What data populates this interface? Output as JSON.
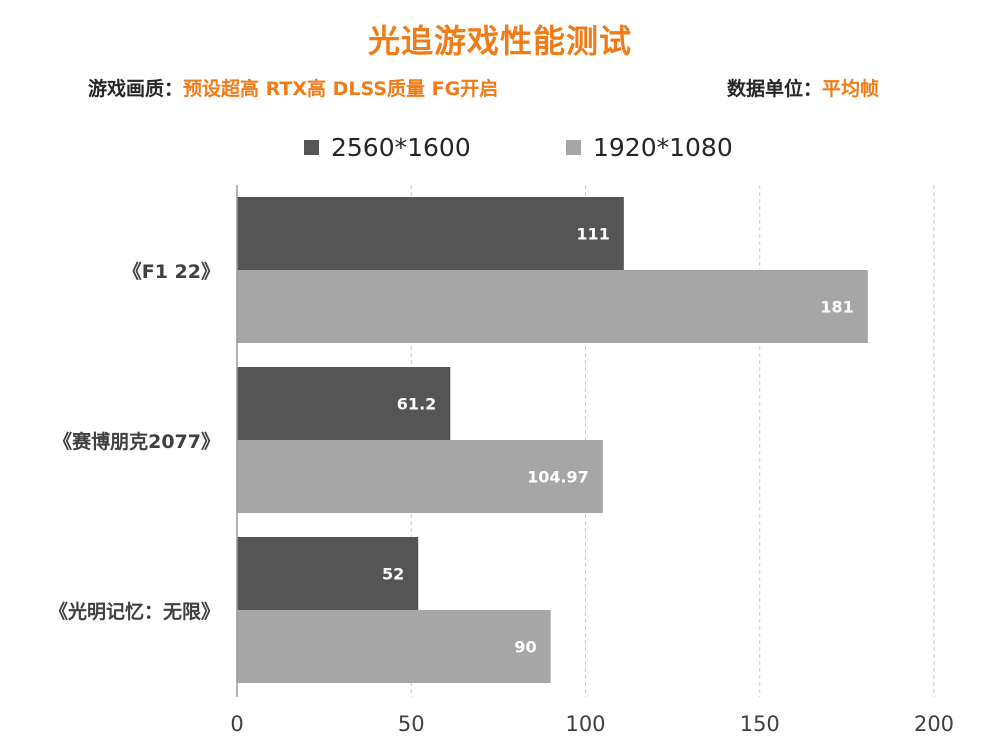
{
  "header": {
    "title": "光追游戏性能测试",
    "settings_label": "游戏画质：",
    "settings_value": "预设超高 RTX高  DLSS质量  FG开启",
    "unit_label": "数据单位：",
    "unit_value": "平均帧"
  },
  "colors": {
    "accent": "#f07b17",
    "series_dark": "#555555",
    "series_light": "#a6a6a6"
  },
  "chart_data": {
    "type": "bar",
    "orientation": "horizontal",
    "categories": [
      "《F1  22》",
      "《赛博朋克2077》",
      "《光明记忆：无限》"
    ],
    "series": [
      {
        "name": "2560*1600",
        "values": [
          111,
          61.2,
          52
        ],
        "labels": [
          "111",
          "61.2",
          "52"
        ]
      },
      {
        "name": "1920*1080",
        "values": [
          181,
          104.97,
          90
        ],
        "labels": [
          "181",
          "104.97",
          "90"
        ]
      }
    ],
    "xlim": [
      0,
      200
    ],
    "xticks": [
      0,
      50,
      100,
      150,
      200
    ],
    "grid": true,
    "legend_position": "top"
  }
}
